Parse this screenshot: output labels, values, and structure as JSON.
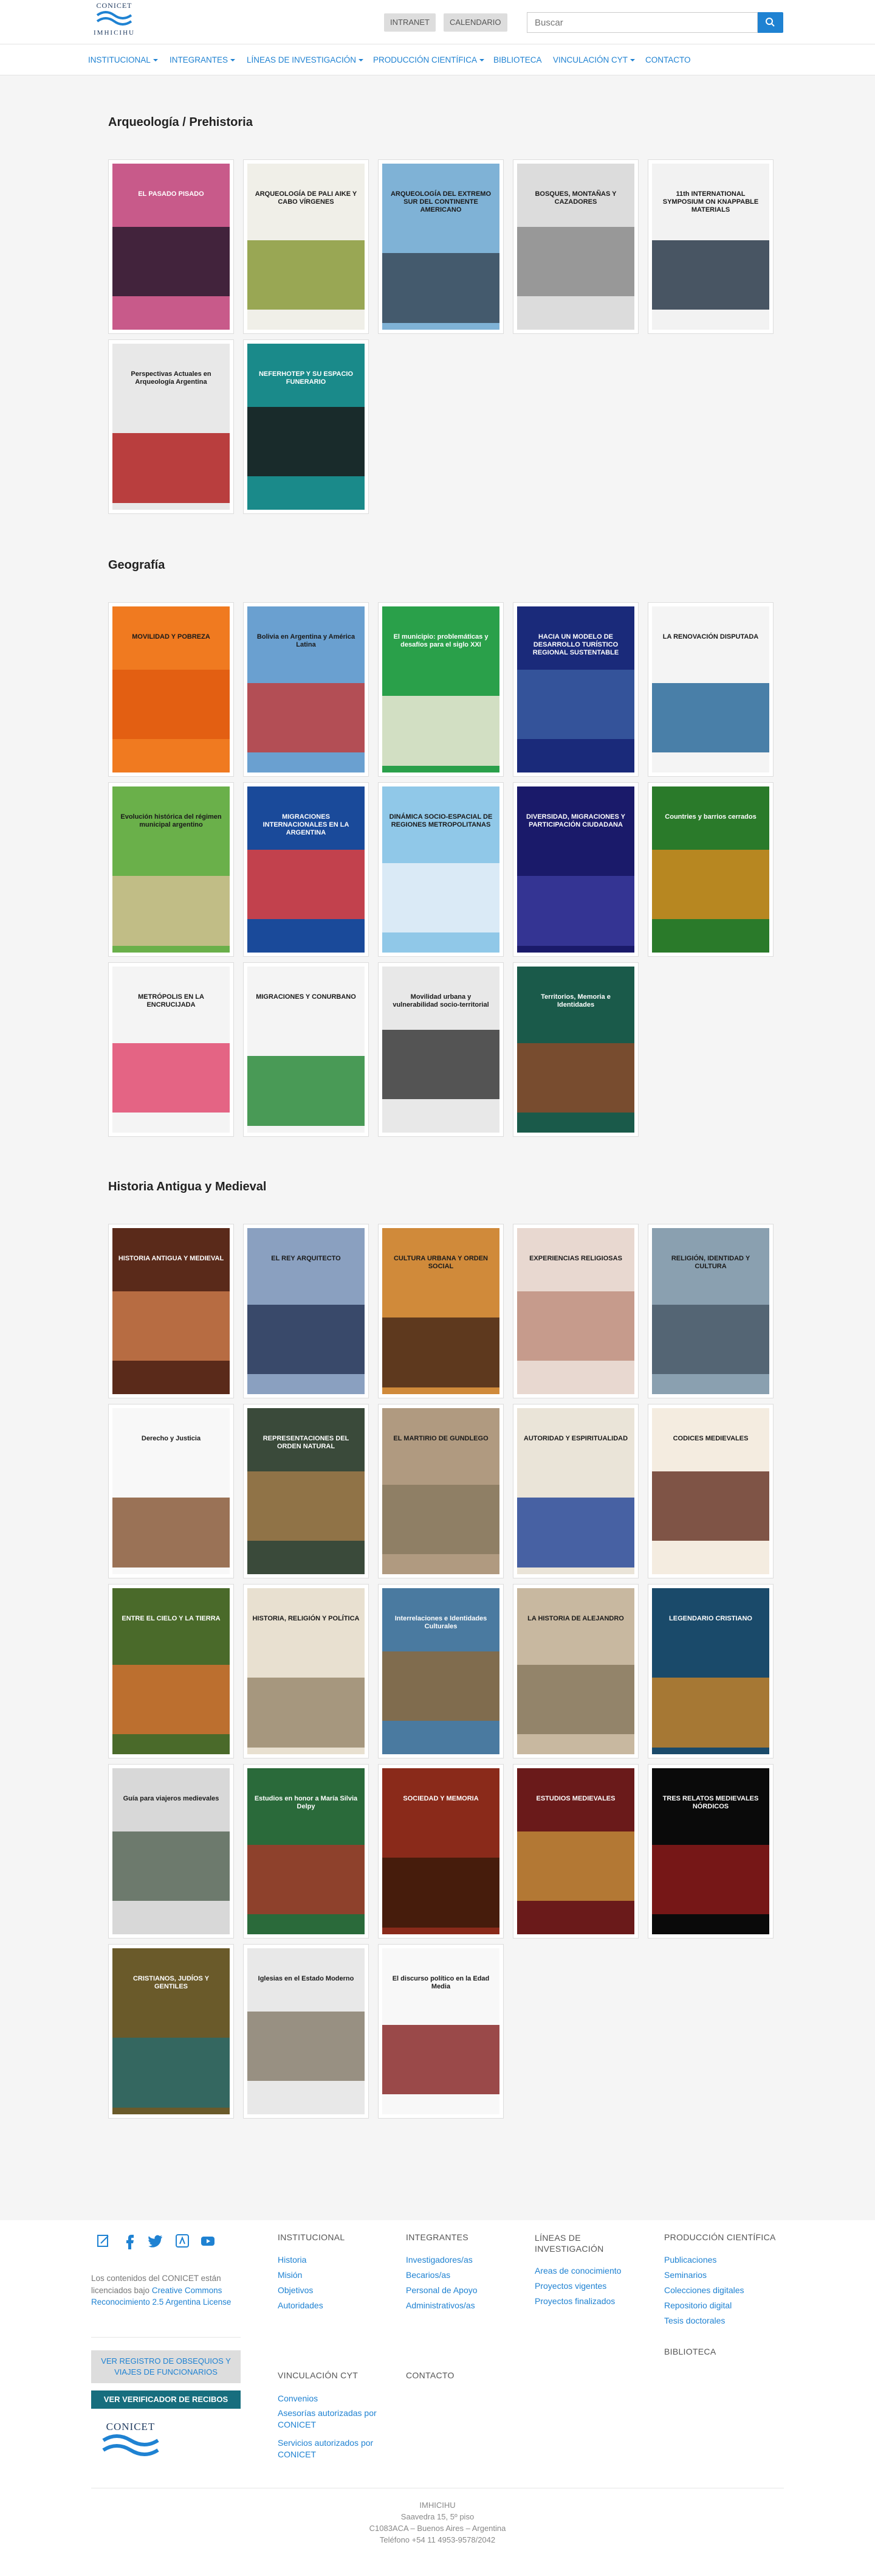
{
  "header": {
    "logo_top": "CONICET",
    "logo_bottom": "IMHICIHU",
    "intranet": "INTRANET",
    "calendario": "CALENDARIO",
    "search_placeholder": "Buscar"
  },
  "nav": [
    {
      "label": "INSTITUCIONAL",
      "dropdown": true
    },
    {
      "label": "INTEGRANTES",
      "dropdown": true
    },
    {
      "label": "LÍNEAS DE INVESTIGACIÓN",
      "dropdown": true
    },
    {
      "label": "PRODUCCIÓN CIENTÍFICA",
      "dropdown": true
    },
    {
      "label": "BIBLIOTECA",
      "dropdown": false
    },
    {
      "label": "VINCULACIÓN CYT",
      "dropdown": true
    },
    {
      "label": "CONTACTO",
      "dropdown": false
    }
  ],
  "sections": [
    {
      "title": "Arqueología / Prehistoria",
      "books": [
        {
          "title": "EL PASADO PISADO",
          "colors": [
            "#c85a8a",
            "#2a1a2e"
          ]
        },
        {
          "title": "ARQUEOLOGÍA DE PALI AIKE Y CABO VÍRGENES",
          "colors": [
            "#f0efe8",
            "#8a9a3a"
          ]
        },
        {
          "title": "ARQUEOLOGÍA DEL EXTREMO SUR DEL CONTINENTE AMERICANO",
          "colors": [
            "#7fb2d6",
            "#3a4a5a"
          ]
        },
        {
          "title": "BOSQUES, MONTAÑAS Y CAZADORES",
          "colors": [
            "#dcdcdc",
            "#8c8c8c"
          ]
        },
        {
          "title": "11th INTERNATIONAL SYMPOSIUM ON KNAPPABLE MATERIALS",
          "colors": [
            "#f2f2f2",
            "#2a3a4a"
          ]
        },
        {
          "title": "Perspectivas Actuales en Arqueología Argentina",
          "colors": [
            "#e8e8e8",
            "#b02020"
          ]
        },
        {
          "title": "NEFERHOTEP Y SU ESPACIO FUNERARIO",
          "colors": [
            "#1a8a8a",
            "#1a1a1a"
          ]
        }
      ]
    },
    {
      "title": "Geografía",
      "books": [
        {
          "title": "MOVILIDAD Y POBREZA",
          "colors": [
            "#f07a20",
            "#e05a10"
          ]
        },
        {
          "title": "Bolivia en Argentina y América Latina",
          "colors": [
            "#6aa0d0",
            "#c04040"
          ]
        },
        {
          "title": "El municipio: problemáticas y desafíos para el siglo XXI",
          "colors": [
            "#2aa04a",
            "#f0ead8"
          ]
        },
        {
          "title": "HACIA UN MODELO DE DESARROLLO TURÍSTICO REGIONAL SUSTENTABLE",
          "colors": [
            "#1a2a7a",
            "#3a5aa0"
          ]
        },
        {
          "title": "LA RENOVACIÓN DISPUTADA",
          "colors": [
            "#f4f4f4",
            "#2a6a9a"
          ]
        },
        {
          "title": "Evolución histórica del régimen municipal argentino",
          "colors": [
            "#6ab04a",
            "#d0c090"
          ]
        },
        {
          "title": "MIGRACIONES INTERNACIONALES EN LA ARGENTINA",
          "colors": [
            "#1a4a9a",
            "#e04040"
          ]
        },
        {
          "title": "DINÁMICA SOCIO-ESPACIAL DE REGIONES METROPOLITANAS",
          "colors": [
            "#90c8e8",
            "#e8f0f8"
          ]
        },
        {
          "title": "DIVERSIDAD, MIGRACIONES Y PARTICIPACIÓN CIUDADANA",
          "colors": [
            "#1a1a6a",
            "#3a3a9a"
          ]
        },
        {
          "title": "Countries y barrios cerrados",
          "colors": [
            "#2a7a2a",
            "#d08a20"
          ]
        },
        {
          "title": "METRÓPOLIS EN LA ENCRUCIJADA",
          "colors": [
            "#f4f4f4",
            "#e04a70"
          ]
        },
        {
          "title": "MIGRACIONES Y CONURBANO",
          "colors": [
            "#f4f4f4",
            "#2a8a3a"
          ]
        },
        {
          "title": "Movilidad urbana y vulnerabilidad socio-territorial",
          "colors": [
            "#e8e8e8",
            "#3a3a3a"
          ]
        },
        {
          "title": "Territorios, Memoria e Identidades",
          "colors": [
            "#1a5a4a",
            "#8a4a2a"
          ]
        }
      ]
    },
    {
      "title": "Historia Antigua y Medieval",
      "books": [
        {
          "title": "HISTORIA ANTIGUA Y MEDIEVAL",
          "colors": [
            "#5a2a1a",
            "#c8784a"
          ]
        },
        {
          "title": "EL REY ARQUITECTO",
          "colors": [
            "#8aa0c0",
            "#2a3a5a"
          ]
        },
        {
          "title": "CULTURA URBANA Y ORDEN SOCIAL",
          "colors": [
            "#d08a3a",
            "#4a2a1a"
          ]
        },
        {
          "title": "EXPERIENCIAS RELIGIOSAS",
          "colors": [
            "#e8d8d0",
            "#c09080"
          ]
        },
        {
          "title": "RELIGIÓN, IDENTIDAD Y CULTURA",
          "colors": [
            "#8aa0b0",
            "#4a5a6a"
          ]
        },
        {
          "title": "Derecho y Justicia",
          "colors": [
            "#f8f8f8",
            "#8a5a3a"
          ]
        },
        {
          "title": "REPRESENTACIONES DEL ORDEN NATURAL",
          "colors": [
            "#3a4a3a",
            "#a07a4a"
          ]
        },
        {
          "title": "EL MARTIRIO DE GUNDLEGO",
          "colors": [
            "#b09a80",
            "#8a7a60"
          ]
        },
        {
          "title": "AUTORIDAD Y ESPIRITUALIDAD",
          "colors": [
            "#eae4d8",
            "#2a4a9a"
          ]
        },
        {
          "title": "CODICES MEDIEVALES",
          "colors": [
            "#f4ece0",
            "#6a3a2a"
          ]
        },
        {
          "title": "ENTRE EL CIELO Y LA TIERRA",
          "colors": [
            "#4a6a2a",
            "#d07030"
          ]
        },
        {
          "title": "HISTORIA, RELIGIÓN Y POLÍTICA",
          "colors": [
            "#e8e0d0",
            "#9a8a70"
          ]
        },
        {
          "title": "Interrelaciones e Identidades Culturales",
          "colors": [
            "#4a7aa0",
            "#8a6a40"
          ]
        },
        {
          "title": "LA HISTORIA DE ALEJANDRO",
          "colors": [
            "#c8b8a0",
            "#8a7a60"
          ]
        },
        {
          "title": "LEGENDARIO CRISTIANO",
          "colors": [
            "#1a4a6a",
            "#c0802a"
          ]
        },
        {
          "title": "Guía para viajeros medievales",
          "colors": [
            "#d8d8d8",
            "#5a6a5a"
          ]
        },
        {
          "title": "Estudios en honor a María Silvia Delpy",
          "colors": [
            "#2a6a3a",
            "#a03a2a"
          ]
        },
        {
          "title": "SOCIEDAD Y MEMORIA",
          "colors": [
            "#8a2a1a",
            "#3a1a0a"
          ]
        },
        {
          "title": "ESTUDIOS MEDIEVALES",
          "colors": [
            "#6a1a1a",
            "#c08a3a"
          ]
        },
        {
          "title": "TRES RELATOS MEDIEVALES NÓRDICOS",
          "colors": [
            "#0a0a0a",
            "#8a1a1a"
          ]
        },
        {
          "title": "CRISTIANOS, JUDÍOS Y GENTILES",
          "colors": [
            "#6a5a2a",
            "#2a6a6a"
          ]
        },
        {
          "title": "Iglesias en el Estado Moderno",
          "colors": [
            "#e8e8e8",
            "#8a8070"
          ]
        },
        {
          "title": "El discurso político en la Edad Media",
          "colors": [
            "#f8f8f8",
            "#8a2a2a"
          ]
        }
      ]
    }
  ],
  "footer": {
    "social": [
      "edit-icon",
      "facebook-icon",
      "twitter-icon",
      "app-icon",
      "youtube-icon"
    ],
    "license_pre": "Los contenidos del CONICET están licenciados bajo ",
    "license_link": "Creative Commons Reconocimiento 2.5 Argentina License",
    "btn_registro": "VER REGISTRO DE OBSEQUIOS Y VIAJES DE FUNCIONARIOS",
    "btn_verificador": "VER VERIFICADOR DE RECIBOS",
    "logo": "CONICET",
    "columns": [
      {
        "title": "INSTITUCIONAL",
        "links": [
          "Historia",
          "Misión",
          "Objetivos",
          "Autoridades"
        ]
      },
      {
        "title": "INTEGRANTES",
        "links": [
          "Investigadores/as",
          "Becarios/as",
          "Personal de Apoyo",
          "Administrativos/as"
        ]
      },
      {
        "title": "LÍNEAS DE INVESTIGACIÓN",
        "links": [
          "Areas de conocimiento",
          "Proyectos vigentes",
          "Proyectos finalizados"
        ]
      },
      {
        "title": "PRODUCCIÓN CIENTÍFICA",
        "links": [
          "Publicaciones",
          "Seminarios",
          "Colecciones digitales",
          "Repositorio digital",
          "Tesis doctorales"
        ]
      }
    ],
    "biblioteca": "BIBLIOTECA",
    "vinculacion_title": "VINCULACIÓN CYT",
    "vinculacion_links": [
      "Convenios",
      "Asesorías autorizadas por CONICET",
      "Servicios autorizados por CONICET"
    ],
    "contacto": "CONTACTO",
    "address": [
      "IMHICIHU",
      "Saavedra 15, 5º piso",
      "C1083ACA – Buenos Aires – Argentina",
      "Teléfono +54 11 4953-9578/2042"
    ]
  }
}
